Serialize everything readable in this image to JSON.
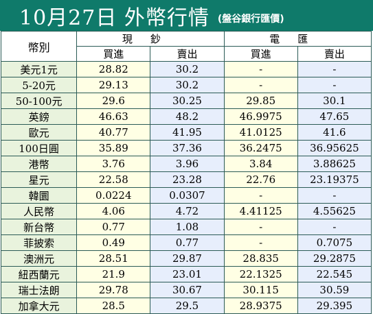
{
  "title": "10月27日 外幣行情",
  "subtitle": "(盤谷銀行匯價)",
  "header": {
    "currency_col": "幣別",
    "cash_group": "現鈔",
    "telegraphic_group": "電匯",
    "buy": "買進",
    "sell": "賣出"
  },
  "rows": [
    {
      "currency": "美元1元",
      "cash_buy": "28.82",
      "cash_sell": "30.2",
      "tt_buy": "-",
      "tt_sell": "-"
    },
    {
      "currency": "5-20元",
      "cash_buy": "29.13",
      "cash_sell": "30.2",
      "tt_buy": "-",
      "tt_sell": "-"
    },
    {
      "currency": "50-100元",
      "cash_buy": "29.6",
      "cash_sell": "30.25",
      "tt_buy": "29.85",
      "tt_sell": "30.1"
    },
    {
      "currency": "英鎊",
      "cash_buy": "46.63",
      "cash_sell": "48.2",
      "tt_buy": "46.9975",
      "tt_sell": "47.65"
    },
    {
      "currency": "歐元",
      "cash_buy": "40.77",
      "cash_sell": "41.95",
      "tt_buy": "41.0125",
      "tt_sell": "41.6"
    },
    {
      "currency": "100日圓",
      "cash_buy": "35.89",
      "cash_sell": "37.36",
      "tt_buy": "36.2475",
      "tt_sell": "36.95625"
    },
    {
      "currency": "港幣",
      "cash_buy": "3.76",
      "cash_sell": "3.96",
      "tt_buy": "3.84",
      "tt_sell": "3.88625"
    },
    {
      "currency": "星元",
      "cash_buy": "22.58",
      "cash_sell": "23.28",
      "tt_buy": "22.76",
      "tt_sell": "23.19375"
    },
    {
      "currency": "韓圜",
      "cash_buy": "0.0224",
      "cash_sell": "0.0307",
      "tt_buy": "-",
      "tt_sell": "-"
    },
    {
      "currency": "人民幣",
      "cash_buy": "4.06",
      "cash_sell": "4.72",
      "tt_buy": "4.41125",
      "tt_sell": "4.55625"
    },
    {
      "currency": "新台幣",
      "cash_buy": "0.77",
      "cash_sell": "1.08",
      "tt_buy": "-",
      "tt_sell": "-"
    },
    {
      "currency": "菲披索",
      "cash_buy": "0.49",
      "cash_sell": "0.77",
      "tt_buy": "-",
      "tt_sell": "0.7075"
    },
    {
      "currency": "澳洲元",
      "cash_buy": "28.51",
      "cash_sell": "29.87",
      "tt_buy": "28.835",
      "tt_sell": "29.2875"
    },
    {
      "currency": "紐西蘭元",
      "cash_buy": "21.9",
      "cash_sell": "23.01",
      "tt_buy": "22.1325",
      "tt_sell": "22.545"
    },
    {
      "currency": "瑞士法朗",
      "cash_buy": "29.78",
      "cash_sell": "30.67",
      "tt_buy": "30.115",
      "tt_sell": "30.59"
    },
    {
      "currency": "加拿大元",
      "cash_buy": "28.5",
      "cash_sell": "29.5",
      "tt_buy": "28.9375",
      "tt_sell": "29.395"
    }
  ]
}
